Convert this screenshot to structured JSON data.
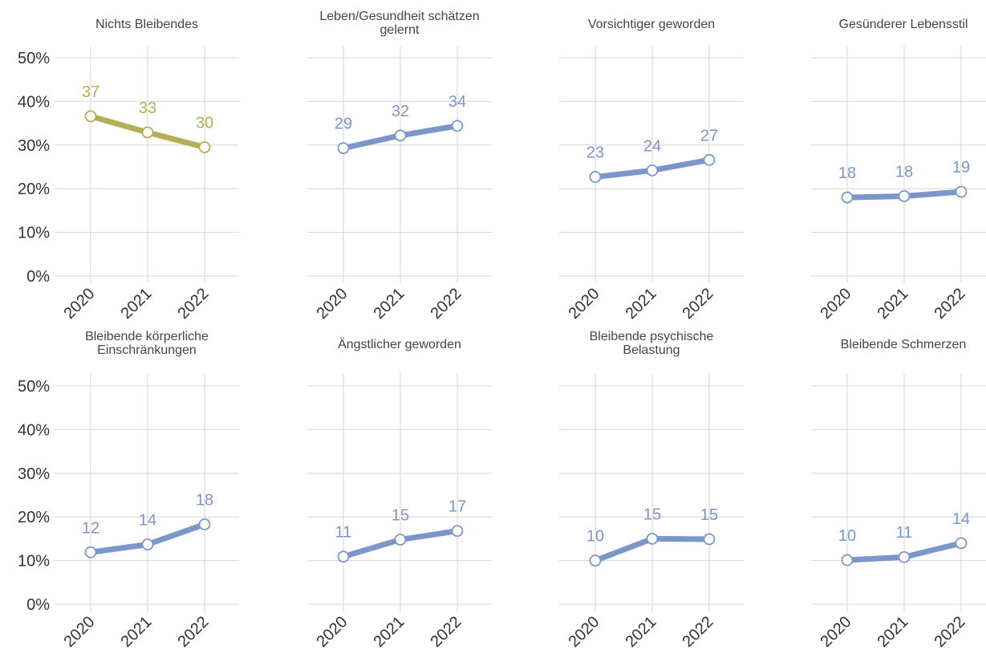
{
  "chart_data": {
    "type": "line",
    "layout": "small-multiples",
    "x": [
      "2020",
      "2021",
      "2022"
    ],
    "y_ticks": [
      "0%",
      "10%",
      "20%",
      "30%",
      "40%",
      "50%"
    ],
    "ylim": [
      0,
      50
    ],
    "grid": true,
    "colors": {
      "highlight": "#b5ad57",
      "default": "#7b96c9",
      "marker_fill": "#ffffff"
    },
    "panels": [
      {
        "title_lines": [
          "Nichts Bleibendes"
        ],
        "values": [
          36.6,
          32.9,
          29.5
        ],
        "labels": [
          "37",
          "33",
          "30"
        ],
        "highlight": true
      },
      {
        "title_lines": [
          "Leben/Gesundheit schätzen",
          "gelernt"
        ],
        "values": [
          29.3,
          32.2,
          34.4
        ],
        "labels": [
          "29",
          "32",
          "34"
        ],
        "highlight": false
      },
      {
        "title_lines": [
          "Vorsichtiger geworden"
        ],
        "values": [
          22.7,
          24.2,
          26.6
        ],
        "labels": [
          "23",
          "24",
          "27"
        ],
        "highlight": false
      },
      {
        "title_lines": [
          "Gesünderer Lebensstil"
        ],
        "values": [
          18.0,
          18.3,
          19.3
        ],
        "labels": [
          "18",
          "18",
          "19"
        ],
        "highlight": false
      },
      {
        "title_lines": [
          "Bleibende körperliche",
          "Einschränkungen"
        ],
        "values": [
          11.9,
          13.7,
          18.3
        ],
        "labels": [
          "12",
          "14",
          "18"
        ],
        "highlight": false
      },
      {
        "title_lines": [
          "Ängstlicher geworden"
        ],
        "values": [
          10.9,
          14.8,
          16.8
        ],
        "labels": [
          "11",
          "15",
          "17"
        ],
        "highlight": false
      },
      {
        "title_lines": [
          "Bleibende psychische",
          "Belastung"
        ],
        "values": [
          10.0,
          15.0,
          14.9
        ],
        "labels": [
          "10",
          "15",
          "15"
        ],
        "highlight": false
      },
      {
        "title_lines": [
          "Bleibende Schmerzen"
        ],
        "values": [
          10.1,
          10.8,
          14.0
        ],
        "labels": [
          "10",
          "11",
          "14"
        ],
        "highlight": false
      }
    ]
  }
}
